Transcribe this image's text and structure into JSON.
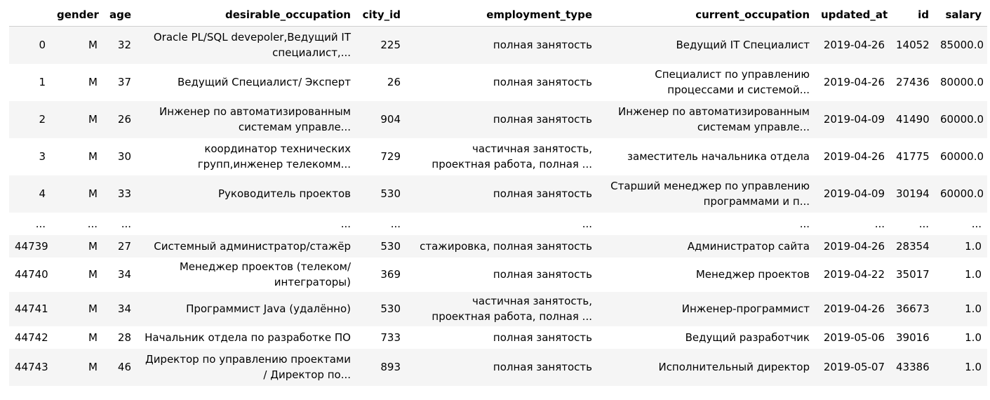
{
  "table": {
    "columns": [
      "",
      "gender",
      "age",
      "desirable_occupation",
      "city_id",
      "employment_type",
      "current_occupation",
      "updated_at",
      "id",
      "salary"
    ],
    "rows": [
      {
        "idx": "0",
        "gender": "M",
        "age": "32",
        "desirable_occupation": "Oracle PL/SQL devepoler,Ведущий IT специалист,...",
        "city_id": "225",
        "employment_type": "полная занятость",
        "current_occupation": "Ведущий IT Специалист",
        "updated_at": "2019-04-26",
        "id": "14052",
        "salary": "85000.0"
      },
      {
        "idx": "1",
        "gender": "M",
        "age": "37",
        "desirable_occupation": "Ведущий Специалист/ Эксперт",
        "city_id": "26",
        "employment_type": "полная занятость",
        "current_occupation": "Специалист по управлению процессами и системой...",
        "updated_at": "2019-04-26",
        "id": "27436",
        "salary": "80000.0"
      },
      {
        "idx": "2",
        "gender": "M",
        "age": "26",
        "desirable_occupation": "Инженер по автоматизированным системам управле...",
        "city_id": "904",
        "employment_type": "полная занятость",
        "current_occupation": "Инженер по автоматизированным системам управле...",
        "updated_at": "2019-04-09",
        "id": "41490",
        "salary": "60000.0"
      },
      {
        "idx": "3",
        "gender": "M",
        "age": "30",
        "desirable_occupation": "координатор технических групп,инженер телекомм...",
        "city_id": "729",
        "employment_type": "частичная занятость, проектная работа, полная ...",
        "current_occupation": "заместитель начальника отдела",
        "updated_at": "2019-04-26",
        "id": "41775",
        "salary": "60000.0"
      },
      {
        "idx": "4",
        "gender": "M",
        "age": "33",
        "desirable_occupation": "Руководитель проектов",
        "city_id": "530",
        "employment_type": "полная занятость",
        "current_occupation": "Старший менеджер по управлению программами и п...",
        "updated_at": "2019-04-09",
        "id": "30194",
        "salary": "60000.0"
      },
      {
        "idx": "...",
        "gender": "...",
        "age": "...",
        "desirable_occupation": "...",
        "city_id": "...",
        "employment_type": "...",
        "current_occupation": "...",
        "updated_at": "...",
        "id": "...",
        "salary": "..."
      },
      {
        "idx": "44739",
        "gender": "M",
        "age": "27",
        "desirable_occupation": "Системный администратор/стажёр",
        "city_id": "530",
        "employment_type": "стажировка, полная занятость",
        "current_occupation": "Администратор сайта",
        "updated_at": "2019-04-26",
        "id": "28354",
        "salary": "1.0"
      },
      {
        "idx": "44740",
        "gender": "M",
        "age": "34",
        "desirable_occupation": "Менеджер проектов (телеком/ интеграторы)",
        "city_id": "369",
        "employment_type": "полная занятость",
        "current_occupation": "Менеджер проектов",
        "updated_at": "2019-04-22",
        "id": "35017",
        "salary": "1.0"
      },
      {
        "idx": "44741",
        "gender": "M",
        "age": "34",
        "desirable_occupation": "Программист Java (удалённо)",
        "city_id": "530",
        "employment_type": "частичная занятость, проектная работа, полная ...",
        "current_occupation": "Инженер-программист",
        "updated_at": "2019-04-26",
        "id": "36673",
        "salary": "1.0"
      },
      {
        "idx": "44742",
        "gender": "M",
        "age": "28",
        "desirable_occupation": "Начальник отдела по разработке ПО",
        "city_id": "733",
        "employment_type": "полная занятость",
        "current_occupation": "Ведущий разработчик",
        "updated_at": "2019-05-06",
        "id": "39016",
        "salary": "1.0"
      },
      {
        "idx": "44743",
        "gender": "M",
        "age": "46",
        "desirable_occupation": "Директор по управлению проектами / Директор по...",
        "city_id": "893",
        "employment_type": "полная занятость",
        "current_occupation": "Исполнительный директор",
        "updated_at": "2019-05-07",
        "id": "43386",
        "salary": "1.0"
      }
    ]
  }
}
